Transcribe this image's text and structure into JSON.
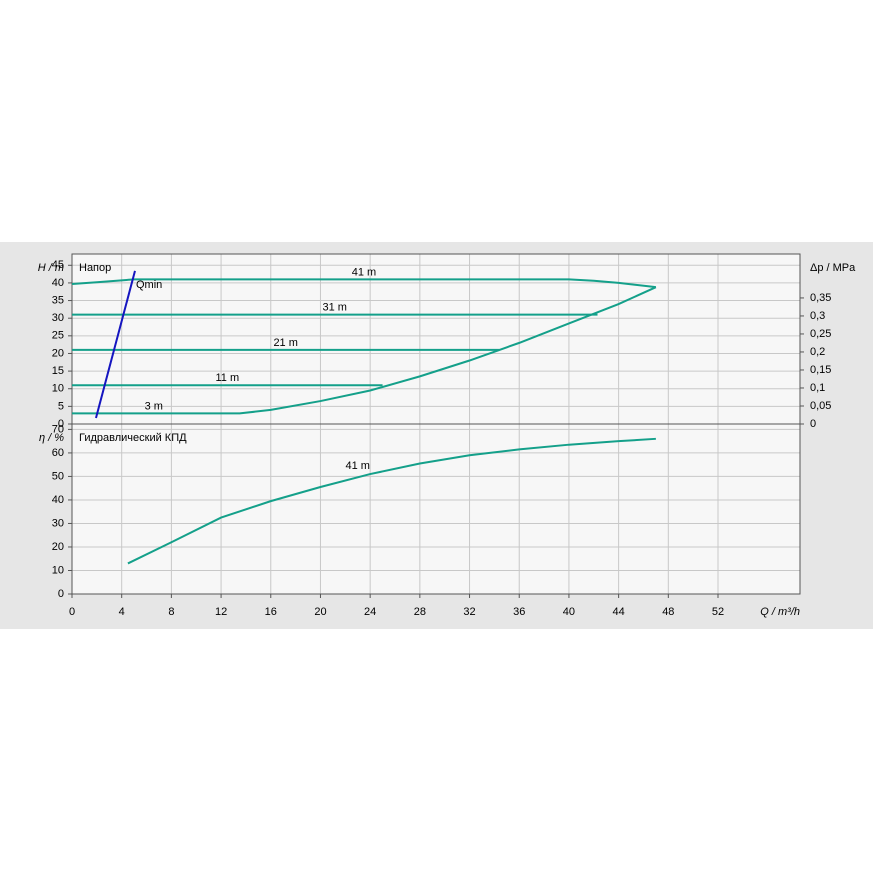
{
  "chart_data": [
    {
      "type": "line",
      "title": "Напор",
      "ylabel": "H / m",
      "y2label": "Δp / MPa",
      "xlim": [
        0,
        58.6
      ],
      "ylim": [
        0,
        48.2
      ],
      "yticks": [
        0,
        5,
        10,
        15,
        20,
        25,
        30,
        35,
        40,
        45
      ],
      "y2lim": [
        0,
        0.472
      ],
      "y2ticks": [
        0,
        {
          "value": 0.05,
          "label": "0,05"
        },
        {
          "value": 0.1,
          "label": "0,1"
        },
        {
          "value": 0.15,
          "label": "0,15"
        },
        {
          "value": 0.2,
          "label": "0,2"
        },
        {
          "value": 0.25,
          "label": "0,25"
        },
        {
          "value": 0.3,
          "label": "0,3"
        },
        {
          "value": 0.35,
          "label": "0,35"
        }
      ],
      "grid": true,
      "series": [
        {
          "name": "41 m",
          "color": "#14a08a",
          "x": [
            0,
            2,
            5,
            10,
            20,
            30,
            40,
            42,
            44,
            47
          ],
          "values": [
            39.7,
            40.2,
            41,
            41,
            41,
            41,
            41,
            40.6,
            40,
            38.8
          ]
        },
        {
          "name": "31 m",
          "color": "#14a08a",
          "x": [
            0,
            42.3
          ],
          "values": [
            31,
            31
          ]
        },
        {
          "name": "21 m",
          "color": "#14a08a",
          "x": [
            0,
            34.4
          ],
          "values": [
            21,
            21
          ]
        },
        {
          "name": "11 m",
          "color": "#14a08a",
          "x": [
            0,
            25
          ],
          "values": [
            11,
            11
          ]
        },
        {
          "name": "3 m",
          "color": "#14a08a",
          "x": [
            0,
            13.5,
            16,
            20,
            24,
            28,
            32,
            36,
            40,
            44,
            47
          ],
          "values": [
            3,
            3,
            4,
            6.5,
            9.5,
            13.5,
            18,
            23,
            28.5,
            34,
            38.8
          ]
        },
        {
          "name": "Qmin",
          "color": "#1515c0",
          "x": [
            1.93,
            5.07
          ],
          "values": [
            1.7,
            43.4
          ]
        }
      ]
    },
    {
      "type": "line",
      "title": "Гидравлический КПД",
      "ylabel": "η / %",
      "xlabel": "Q / m³/h",
      "xlim": [
        0,
        58.6
      ],
      "xticks": [
        0,
        4,
        8,
        12,
        16,
        20,
        24,
        28,
        32,
        36,
        40,
        44,
        48,
        52
      ],
      "ylim": [
        0,
        72.3
      ],
      "yticks": [
        0,
        10,
        20,
        30,
        40,
        50,
        60,
        70
      ],
      "grid": true,
      "series": [
        {
          "name": "41 m",
          "color": "#14a08a",
          "x": [
            4.5,
            8,
            12,
            16,
            20,
            24,
            28,
            32,
            36,
            40,
            44,
            47
          ],
          "values": [
            13,
            22,
            32.5,
            39.5,
            45.5,
            51,
            55.5,
            59,
            61.5,
            63.5,
            65,
            66
          ]
        }
      ]
    }
  ]
}
